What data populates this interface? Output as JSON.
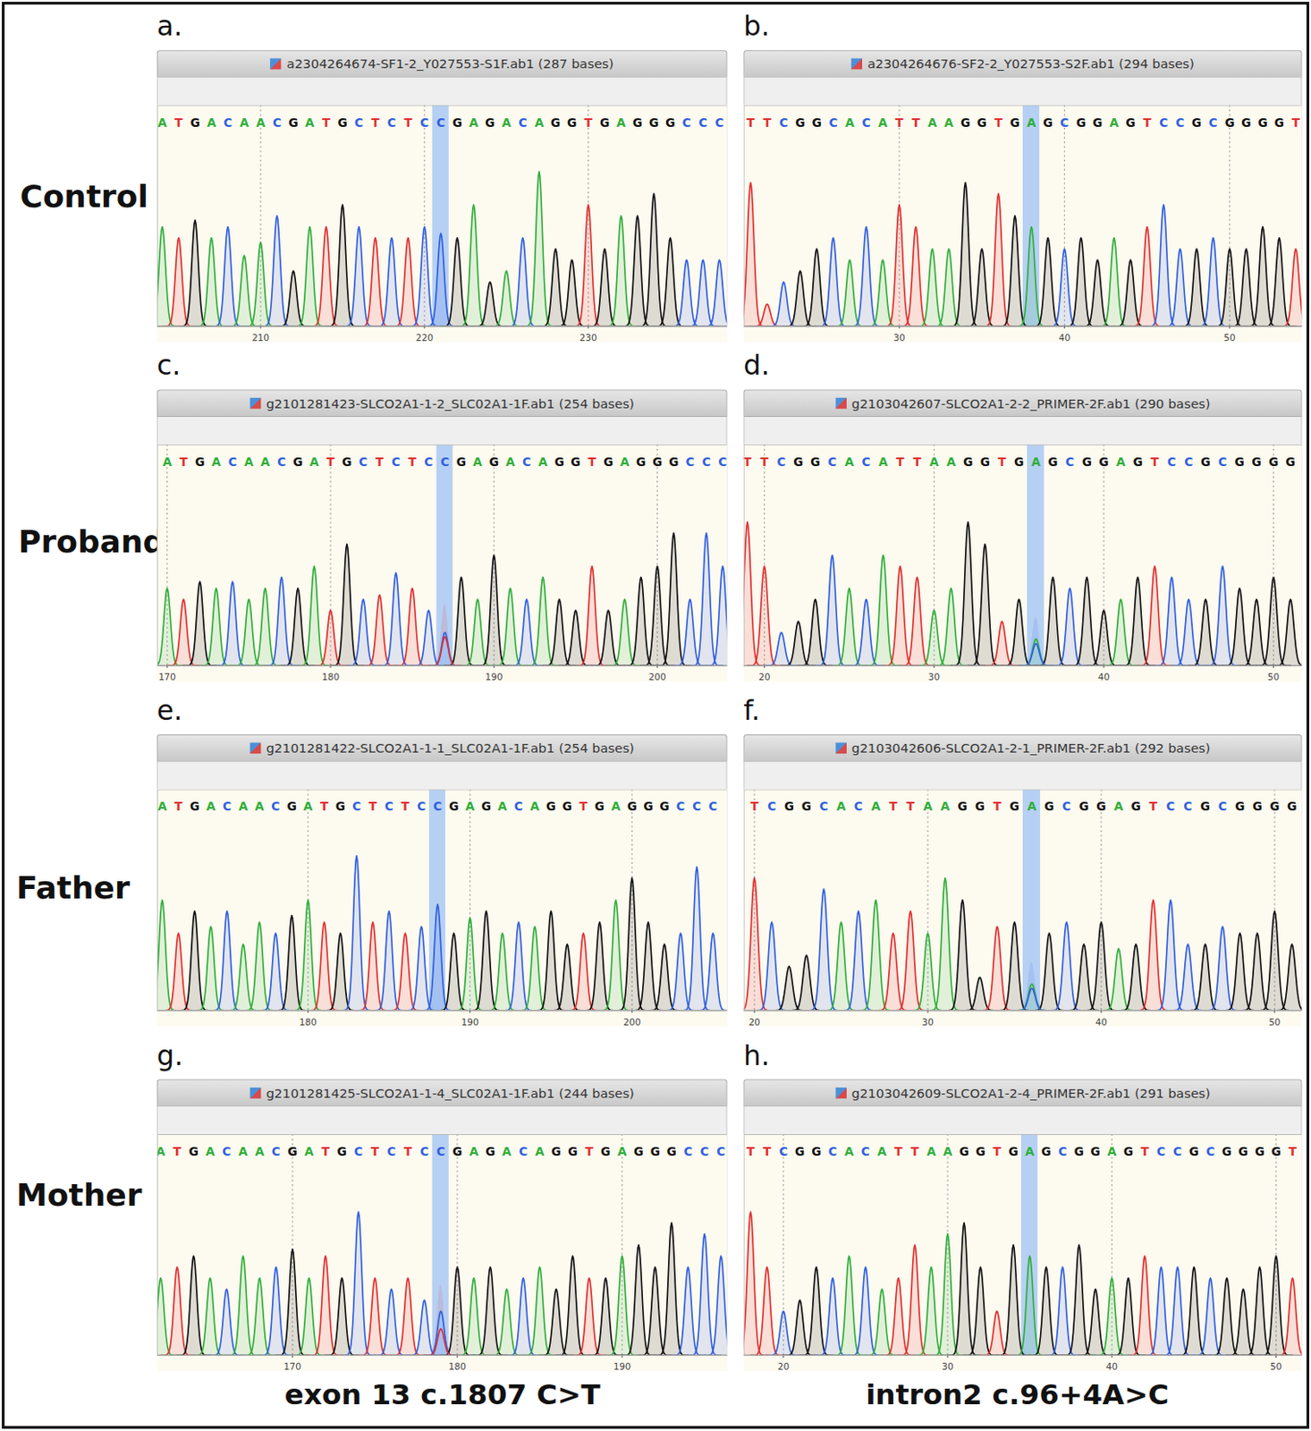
{
  "figure": {
    "row_labels": [
      "Control",
      "Proband",
      "Father",
      "Mother"
    ],
    "column_captions": [
      "exon 13 c.1807 C>T",
      "intron2 c.96+4A>C"
    ],
    "base_colors": {
      "A": "#2fae3a",
      "C": "#2f5fe0",
      "G": "#111111",
      "T": "#e02f2f"
    },
    "highlight_color": "#a9c8f5",
    "background": "#fdfaf0"
  },
  "chart_data": [
    {
      "type": "chromatogram",
      "title": "a.",
      "subtitle": "a2304264674-SF1-2_Y027553-S1F.ab1  (287 bases)",
      "x": [
        204,
        205,
        206,
        207,
        208,
        209,
        210,
        211,
        212,
        213,
        214,
        215,
        216,
        217,
        218,
        219,
        220,
        221,
        222,
        223,
        224,
        225,
        226,
        227,
        228,
        229,
        230,
        231,
        232,
        233,
        234,
        235,
        236,
        237,
        238
      ],
      "bases": [
        "A",
        "T",
        "G",
        "A",
        "C",
        "A",
        "A",
        "C",
        "G",
        "A",
        "T",
        "G",
        "C",
        "T",
        "C",
        "T",
        "C",
        "C",
        "G",
        "A",
        "G",
        "A",
        "C",
        "A",
        "G",
        "G",
        "T",
        "G",
        "A",
        "G",
        "G",
        "G",
        "C",
        "C",
        "C"
      ],
      "values": [
        45,
        40,
        48,
        40,
        45,
        32,
        38,
        50,
        25,
        45,
        45,
        55,
        45,
        40,
        40,
        40,
        45,
        42,
        40,
        55,
        20,
        25,
        40,
        70,
        35,
        30,
        55,
        35,
        50,
        50,
        60,
        40,
        30,
        30,
        30
      ],
      "highlight": 221,
      "secondary": null,
      "xlim": [
        203.7,
        238.5
      ],
      "xticks": [
        210,
        220,
        230
      ],
      "ylim": [
        0,
        100
      ],
      "grid": true,
      "tick_labels": "x"
    },
    {
      "type": "chromatogram",
      "title": "b.",
      "subtitle": "a2304264676-SF2-2_Y027553-S2F.ab1  (294 bases)",
      "x": [
        21,
        22,
        23,
        24,
        25,
        26,
        27,
        28,
        29,
        30,
        31,
        32,
        33,
        34,
        35,
        36,
        37,
        38,
        39,
        40,
        41,
        42,
        43,
        44,
        45,
        46,
        47,
        48,
        49,
        50,
        51,
        52,
        53,
        54
      ],
      "bases": [
        "T",
        "T",
        "C",
        "G",
        "G",
        "C",
        "A",
        "C",
        "A",
        "T",
        "T",
        "A",
        "A",
        "G",
        "G",
        "T",
        "G",
        "A",
        "G",
        "C",
        "G",
        "G",
        "A",
        "G",
        "T",
        "C",
        "C",
        "G",
        "C",
        "G",
        "G",
        "G",
        "G",
        "T"
      ],
      "values": [
        65,
        10,
        20,
        25,
        35,
        40,
        30,
        45,
        30,
        55,
        45,
        35,
        35,
        65,
        35,
        60,
        50,
        45,
        40,
        35,
        40,
        30,
        40,
        30,
        45,
        55,
        35,
        35,
        40,
        35,
        35,
        45,
        40,
        35
      ],
      "highlight": 38,
      "secondary": null,
      "xlim": [
        20.6,
        54.4
      ],
      "xticks": [
        30,
        40,
        50
      ],
      "ylim": [
        0,
        100
      ],
      "grid": true,
      "tick_labels": "x"
    },
    {
      "type": "chromatogram",
      "title": "c.",
      "subtitle": "g2101281423-SLCO2A1-1-2_SLC02A1-1F.ab1  (254 bases)",
      "x": [
        170,
        171,
        172,
        173,
        174,
        175,
        176,
        177,
        178,
        179,
        180,
        181,
        182,
        183,
        184,
        185,
        186,
        187,
        188,
        189,
        190,
        191,
        192,
        193,
        194,
        195,
        196,
        197,
        198,
        199,
        200,
        201,
        202,
        203,
        204
      ],
      "bases": [
        "A",
        "T",
        "G",
        "A",
        "C",
        "A",
        "A",
        "C",
        "G",
        "A",
        "T",
        "G",
        "C",
        "T",
        "C",
        "T",
        "C",
        "C",
        "G",
        "A",
        "G",
        "A",
        "C",
        "A",
        "G",
        "G",
        "T",
        "G",
        "A",
        "G",
        "G",
        "G",
        "C",
        "C",
        "C"
      ],
      "values": [
        35,
        30,
        38,
        35,
        38,
        30,
        35,
        40,
        35,
        45,
        25,
        55,
        30,
        32,
        42,
        35,
        25,
        15,
        40,
        30,
        50,
        35,
        30,
        40,
        30,
        25,
        45,
        25,
        30,
        40,
        45,
        60,
        30,
        60,
        45
      ],
      "highlight": 187,
      "secondary": {
        "position": 187,
        "base": "T",
        "value": 13
      },
      "xlim": [
        169.4,
        204.3
      ],
      "xticks": [
        170,
        180,
        190,
        200
      ],
      "ylim": [
        0,
        100
      ],
      "grid": true,
      "tick_labels": "x"
    },
    {
      "type": "chromatogram",
      "title": "d.",
      "subtitle": "g2103042607-SLCO2A1-2-2_PRIMER-2F.ab1  (290 bases)",
      "x": [
        19,
        20,
        21,
        22,
        23,
        24,
        25,
        26,
        27,
        28,
        29,
        30,
        31,
        32,
        33,
        34,
        35,
        36,
        37,
        38,
        39,
        40,
        41,
        42,
        43,
        44,
        45,
        46,
        47,
        48,
        49,
        50,
        51
      ],
      "bases": [
        "T",
        "T",
        "C",
        "G",
        "G",
        "C",
        "A",
        "C",
        "A",
        "T",
        "T",
        "A",
        "A",
        "G",
        "G",
        "T",
        "G",
        "A",
        "G",
        "C",
        "G",
        "G",
        "A",
        "G",
        "T",
        "C",
        "C",
        "G",
        "C",
        "G",
        "G",
        "G",
        "G"
      ],
      "values": [
        65,
        45,
        15,
        20,
        30,
        50,
        35,
        30,
        50,
        45,
        40,
        25,
        35,
        65,
        55,
        20,
        30,
        12,
        40,
        35,
        40,
        25,
        30,
        40,
        45,
        40,
        30,
        30,
        45,
        35,
        30,
        40,
        30
      ],
      "highlight": 36,
      "secondary": {
        "position": 36,
        "base": "C",
        "value": 10
      },
      "xlim": [
        18.8,
        51.7
      ],
      "xticks": [
        20,
        30,
        40,
        50
      ],
      "ylim": [
        0,
        100
      ],
      "grid": true,
      "tick_labels": "x"
    },
    {
      "type": "chromatogram",
      "title": "e.",
      "subtitle": "g2101281422-SLCO2A1-1-1_SLC02A1-1F.ab1  (254 bases)",
      "x": [
        171,
        172,
        173,
        174,
        175,
        176,
        177,
        178,
        179,
        180,
        181,
        182,
        183,
        184,
        185,
        186,
        187,
        188,
        189,
        190,
        191,
        192,
        193,
        194,
        195,
        196,
        197,
        198,
        199,
        200,
        201,
        202,
        203,
        204,
        205
      ],
      "bases": [
        "A",
        "T",
        "G",
        "A",
        "C",
        "A",
        "A",
        "C",
        "G",
        "A",
        "T",
        "G",
        "C",
        "T",
        "C",
        "T",
        "C",
        "C",
        "G",
        "A",
        "G",
        "A",
        "C",
        "A",
        "G",
        "G",
        "T",
        "G",
        "A",
        "G",
        "G",
        "G",
        "C",
        "C",
        "C"
      ],
      "values": [
        50,
        35,
        45,
        38,
        45,
        30,
        40,
        35,
        43,
        50,
        40,
        35,
        70,
        40,
        45,
        35,
        38,
        48,
        35,
        42,
        45,
        35,
        40,
        38,
        45,
        30,
        35,
        40,
        50,
        60,
        40,
        30,
        35,
        65,
        35
      ],
      "highlight": 188,
      "secondary": null,
      "xlim": [
        170.7,
        205.9
      ],
      "xticks": [
        180,
        190,
        200
      ],
      "ylim": [
        0,
        100
      ],
      "grid": true,
      "tick_labels": "x"
    },
    {
      "type": "chromatogram",
      "title": "f.",
      "subtitle": "g2103042606-SLCO2A1-2-1_PRIMER-2F.ab1  (292 bases)",
      "x": [
        20,
        21,
        22,
        23,
        24,
        25,
        26,
        27,
        28,
        29,
        30,
        31,
        32,
        33,
        34,
        35,
        36,
        37,
        38,
        39,
        40,
        41,
        42,
        43,
        44,
        45,
        46,
        47,
        48,
        49,
        50,
        51
      ],
      "bases": [
        "T",
        "C",
        "G",
        "G",
        "C",
        "A",
        "C",
        "A",
        "T",
        "T",
        "A",
        "A",
        "G",
        "G",
        "T",
        "G",
        "A",
        "G",
        "C",
        "G",
        "G",
        "A",
        "G",
        "T",
        "C",
        "C",
        "G",
        "C",
        "G",
        "G",
        "G",
        "G"
      ],
      "values": [
        60,
        40,
        20,
        25,
        55,
        40,
        45,
        50,
        35,
        45,
        35,
        60,
        50,
        15,
        38,
        40,
        12,
        35,
        40,
        30,
        40,
        28,
        30,
        50,
        50,
        30,
        30,
        38,
        35,
        35,
        45,
        30
      ],
      "highlight": 36,
      "secondary": {
        "position": 36,
        "base": "C",
        "value": 10
      },
      "xlim": [
        19.4,
        51.6
      ],
      "xticks": [
        20,
        30,
        40,
        50
      ],
      "ylim": [
        0,
        100
      ],
      "grid": true,
      "tick_labels": "x"
    },
    {
      "type": "chromatogram",
      "title": "g.",
      "subtitle": "g2101281425-SLCO2A1-1-4_SLC02A1-1F.ab1  (244 bases)",
      "x": [
        162,
        163,
        164,
        165,
        166,
        167,
        168,
        169,
        170,
        171,
        172,
        173,
        174,
        175,
        176,
        177,
        178,
        179,
        180,
        181,
        182,
        183,
        184,
        185,
        186,
        187,
        188,
        189,
        190,
        191,
        192,
        193,
        194,
        195,
        196
      ],
      "bases": [
        "A",
        "T",
        "G",
        "A",
        "C",
        "A",
        "A",
        "C",
        "G",
        "A",
        "T",
        "G",
        "C",
        "T",
        "C",
        "T",
        "C",
        "C",
        "G",
        "A",
        "G",
        "A",
        "C",
        "A",
        "G",
        "G",
        "T",
        "G",
        "A",
        "G",
        "G",
        "G",
        "C",
        "C",
        "C"
      ],
      "values": [
        35,
        40,
        45,
        35,
        30,
        45,
        35,
        40,
        48,
        35,
        45,
        35,
        65,
        35,
        30,
        35,
        25,
        20,
        40,
        35,
        40,
        30,
        35,
        40,
        30,
        45,
        35,
        35,
        45,
        50,
        40,
        60,
        40,
        55,
        45
      ],
      "highlight": 179,
      "secondary": {
        "position": 179,
        "base": "T",
        "value": 12
      },
      "xlim": [
        161.8,
        196.4
      ],
      "xticks": [
        170,
        180,
        190
      ],
      "ylim": [
        0,
        100
      ],
      "grid": true,
      "tick_labels": "x"
    },
    {
      "type": "chromatogram",
      "title": "h.",
      "subtitle": "g2103042609-SLCO2A1-2-4_PRIMER-2F.ab1  (291 bases)",
      "x": [
        18,
        19,
        20,
        21,
        22,
        23,
        24,
        25,
        26,
        27,
        28,
        29,
        30,
        31,
        32,
        33,
        34,
        35,
        36,
        37,
        38,
        39,
        40,
        41,
        42,
        43,
        44,
        45,
        46,
        47,
        48,
        49,
        50,
        51
      ],
      "bases": [
        "T",
        "T",
        "C",
        "G",
        "G",
        "C",
        "A",
        "C",
        "A",
        "T",
        "T",
        "A",
        "A",
        "G",
        "G",
        "T",
        "G",
        "A",
        "G",
        "C",
        "G",
        "G",
        "A",
        "G",
        "T",
        "C",
        "C",
        "G",
        "C",
        "G",
        "G",
        "G",
        "G",
        "T"
      ],
      "values": [
        65,
        40,
        20,
        25,
        40,
        35,
        45,
        40,
        30,
        35,
        50,
        40,
        55,
        60,
        40,
        20,
        50,
        45,
        40,
        40,
        50,
        30,
        35,
        35,
        45,
        40,
        40,
        40,
        35,
        35,
        30,
        40,
        45,
        35
      ],
      "highlight": 35,
      "secondary": null,
      "xlim": [
        17.6,
        51.6
      ],
      "xticks": [
        20,
        30,
        40,
        50
      ],
      "ylim": [
        0,
        100
      ],
      "grid": true,
      "tick_labels": "x"
    }
  ]
}
